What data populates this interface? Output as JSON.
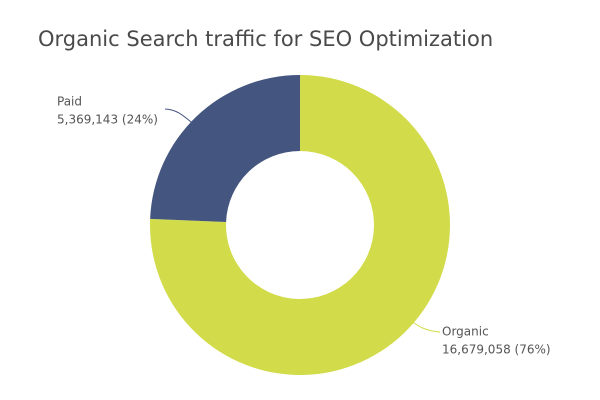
{
  "chart_data": {
    "type": "pie",
    "title": "Organic Search traffic for SEO Optimization",
    "categories": [
      "Organic",
      "Paid"
    ],
    "values": [
      16679058,
      5369143
    ],
    "value_labels": [
      "16,679,058 (76%)",
      "5,369,143 (24%)"
    ],
    "colors": [
      "#d2dc4a",
      "#44567f"
    ],
    "donut": true
  }
}
